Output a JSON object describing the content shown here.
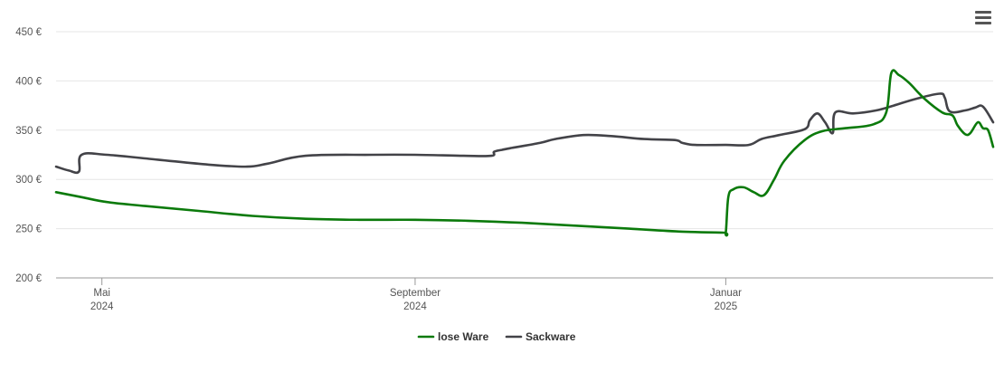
{
  "chart_data": {
    "type": "line",
    "y_ticks": [
      "450 €",
      "400 €",
      "350 €",
      "300 €",
      "250 €",
      "200 €"
    ],
    "y_tick_values": [
      450,
      400,
      350,
      300,
      250,
      200
    ],
    "ylim": [
      200,
      450
    ],
    "xlim": [
      "2024-04-13",
      "2025-04-16"
    ],
    "x_ticks": [
      {
        "date": "2024-05-01",
        "line1": "Mai",
        "line2": "2024"
      },
      {
        "date": "2024-09-01",
        "line1": "September",
        "line2": "2024"
      },
      {
        "date": "2025-01-01",
        "line1": "Januar",
        "line2": "2025"
      }
    ],
    "grid": true,
    "legend_position": "bottom-center",
    "series": [
      {
        "name": "lose Ware",
        "color": "#0b7a0b",
        "points": [
          [
            "2024-04-13",
            287
          ],
          [
            "2024-04-23",
            282
          ],
          [
            "2024-05-03",
            277
          ],
          [
            "2024-05-18",
            273
          ],
          [
            "2024-06-08",
            268
          ],
          [
            "2024-06-29",
            263
          ],
          [
            "2024-07-20",
            260
          ],
          [
            "2024-08-10",
            259
          ],
          [
            "2024-09-01",
            259
          ],
          [
            "2024-09-22",
            258
          ],
          [
            "2024-10-13",
            256
          ],
          [
            "2024-11-03",
            253
          ],
          [
            "2024-11-24",
            250
          ],
          [
            "2024-12-15",
            247
          ],
          [
            "2024-12-31",
            246
          ],
          [
            "2025-01-01",
            246
          ],
          [
            "2025-01-02",
            282
          ],
          [
            "2025-01-04",
            290
          ],
          [
            "2025-01-08",
            292
          ],
          [
            "2025-01-12",
            287
          ],
          [
            "2025-01-16",
            284
          ],
          [
            "2025-01-20",
            300
          ],
          [
            "2025-01-24",
            319
          ],
          [
            "2025-02-01",
            340
          ],
          [
            "2025-02-08",
            349
          ],
          [
            "2025-02-17",
            352
          ],
          [
            "2025-02-28",
            356
          ],
          [
            "2025-03-05",
            368
          ],
          [
            "2025-03-07",
            408
          ],
          [
            "2025-03-10",
            406
          ],
          [
            "2025-03-14",
            398
          ],
          [
            "2025-03-20",
            382
          ],
          [
            "2025-03-27",
            368
          ],
          [
            "2025-03-31",
            365
          ],
          [
            "2025-04-02",
            355
          ],
          [
            "2025-04-05",
            346
          ],
          [
            "2025-04-07",
            347
          ],
          [
            "2025-04-10",
            358
          ],
          [
            "2025-04-12",
            352
          ],
          [
            "2025-04-14",
            350
          ],
          [
            "2025-04-16",
            333
          ]
        ]
      },
      {
        "name": "Sackware",
        "color": "#434348",
        "points": [
          [
            "2024-04-13",
            313
          ],
          [
            "2024-04-18",
            309
          ],
          [
            "2024-04-22",
            308
          ],
          [
            "2024-04-23",
            325
          ],
          [
            "2024-05-03",
            325
          ],
          [
            "2024-05-23",
            320
          ],
          [
            "2024-06-12",
            315
          ],
          [
            "2024-06-27",
            313
          ],
          [
            "2024-07-05",
            316
          ],
          [
            "2024-07-20",
            324
          ],
          [
            "2024-08-15",
            325
          ],
          [
            "2024-09-01",
            325
          ],
          [
            "2024-09-20",
            324
          ],
          [
            "2024-10-01",
            324
          ],
          [
            "2024-10-02",
            328
          ],
          [
            "2024-10-05",
            330
          ],
          [
            "2024-10-09",
            332
          ],
          [
            "2024-10-20",
            337
          ],
          [
            "2024-10-26",
            341
          ],
          [
            "2024-11-06",
            345
          ],
          [
            "2024-11-17",
            344
          ],
          [
            "2024-11-30",
            341
          ],
          [
            "2024-12-12",
            340
          ],
          [
            "2024-12-15",
            337
          ],
          [
            "2024-12-20",
            335
          ],
          [
            "2025-01-01",
            335
          ],
          [
            "2025-01-10",
            335
          ],
          [
            "2025-01-15",
            341
          ],
          [
            "2025-01-22",
            345
          ],
          [
            "2025-02-01",
            351
          ],
          [
            "2025-02-03",
            360
          ],
          [
            "2025-02-06",
            367
          ],
          [
            "2025-02-09",
            358
          ],
          [
            "2025-02-12",
            347
          ],
          [
            "2025-02-13",
            368
          ],
          [
            "2025-02-20",
            367
          ],
          [
            "2025-03-01",
            370
          ],
          [
            "2025-03-08",
            375
          ],
          [
            "2025-03-17",
            382
          ],
          [
            "2025-03-26",
            387
          ],
          [
            "2025-03-28",
            383
          ],
          [
            "2025-03-30",
            369
          ],
          [
            "2025-04-05",
            370
          ],
          [
            "2025-04-09",
            373
          ],
          [
            "2025-04-12",
            374
          ],
          [
            "2025-04-16",
            358
          ]
        ]
      }
    ]
  }
}
